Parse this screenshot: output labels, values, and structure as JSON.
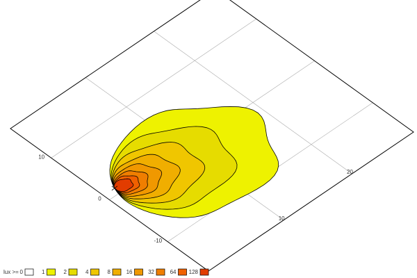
{
  "chart_data": {
    "type": "contour",
    "xlim": [
      -1,
      29
    ],
    "ylim": [
      -17,
      17
    ],
    "xticks": [
      10,
      20
    ],
    "yticks": [
      -10,
      0,
      10
    ],
    "grid": true,
    "legend_title": "lux >=",
    "levels": [
      0,
      1,
      2,
      4,
      8,
      16,
      32,
      64,
      128
    ],
    "colors": [
      "#ffffff",
      "#eef200",
      "#e6dc00",
      "#f0c600",
      "#f0ae00",
      "#f09800",
      "#f07e00",
      "#f06000",
      "#e23c00"
    ]
  }
}
